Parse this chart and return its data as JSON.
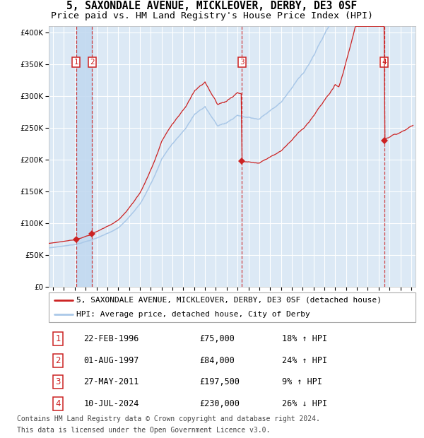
{
  "title": "5, SAXONDALE AVENUE, MICKLEOVER, DERBY, DE3 0SF",
  "subtitle": "Price paid vs. HM Land Registry's House Price Index (HPI)",
  "ylim": [
    0,
    410000
  ],
  "yticks": [
    0,
    50000,
    100000,
    150000,
    200000,
    250000,
    300000,
    350000,
    400000
  ],
  "ytick_labels": [
    "£0",
    "£50K",
    "£100K",
    "£150K",
    "£200K",
    "£250K",
    "£300K",
    "£350K",
    "£400K"
  ],
  "xlim_start": 1993.6,
  "xlim_end": 2027.4,
  "bg_color": "#dce9f5",
  "grid_color": "#ffffff",
  "hpi_line_color": "#aac8e8",
  "price_line_color": "#cc2222",
  "shade_color": "#c0d8f0",
  "dashed_line_color": "#cc2222",
  "transactions": [
    {
      "num": 1,
      "date_str": "22-FEB-1996",
      "year": 1996.13,
      "price": 75000,
      "hpi_pct": 18,
      "direction": "↑"
    },
    {
      "num": 2,
      "date_str": "01-AUG-1997",
      "year": 1997.58,
      "price": 84000,
      "hpi_pct": 24,
      "direction": "↑"
    },
    {
      "num": 3,
      "date_str": "27-MAY-2011",
      "year": 2011.4,
      "price": 197500,
      "hpi_pct": 9,
      "direction": "↑"
    },
    {
      "num": 4,
      "date_str": "10-JUL-2024",
      "year": 2024.52,
      "price": 230000,
      "hpi_pct": 26,
      "direction": "↓"
    }
  ],
  "legend_line1": "5, SAXONDALE AVENUE, MICKLEOVER, DERBY, DE3 0SF (detached house)",
  "legend_line2": "HPI: Average price, detached house, City of Derby",
  "footer_line1": "Contains HM Land Registry data © Crown copyright and database right 2024.",
  "footer_line2": "This data is licensed under the Open Government Licence v3.0.",
  "title_fontsize": 10.5,
  "subtitle_fontsize": 9.5,
  "tick_fontsize": 7.5,
  "legend_fontsize": 8,
  "table_fontsize": 8.5
}
